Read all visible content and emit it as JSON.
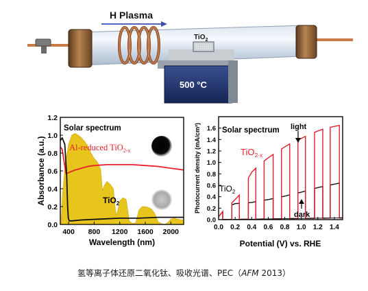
{
  "schematic": {
    "plasma_label": "H Plasma",
    "sample_label": "TiO",
    "sample_sub": "2",
    "furnace_label": "500 °C"
  },
  "chart_data": [
    {
      "type": "line",
      "ylabel": "Absorbance (a.u.)",
      "xlabel": "Wavelength (nm)",
      "xlim": [
        270,
        2200
      ],
      "ylim": [
        0,
        1.2
      ],
      "x_ticks": [
        "400",
        "800",
        "1200",
        "1600",
        "2000"
      ],
      "y_ticks": [
        "0.0",
        "0.2",
        "0.4",
        "0.6",
        "0.8",
        "1.0",
        "1.2"
      ],
      "annotations": [
        "Solar spectrum",
        "Al-reduced TiO",
        "2-x",
        "TiO",
        "2"
      ],
      "series": [
        {
          "name": "Al-reduced TiO2-x",
          "color": "#e8202a",
          "x": [
            270,
            300,
            330,
            360,
            400,
            500,
            600,
            700,
            800,
            1000,
            1200,
            1400,
            1600,
            1800,
            2000,
            2200
          ],
          "y": [
            0.87,
            0.84,
            0.7,
            0.57,
            0.58,
            0.61,
            0.63,
            0.65,
            0.66,
            0.67,
            0.67,
            0.67,
            0.66,
            0.65,
            0.63,
            0.61
          ]
        },
        {
          "name": "TiO2",
          "color": "#111111",
          "x": [
            270,
            300,
            340,
            370,
            385,
            395,
            410,
            450,
            600,
            900,
            1200,
            1500,
            1800,
            2000,
            2200
          ],
          "y": [
            0.94,
            0.97,
            0.9,
            0.55,
            0.2,
            0.07,
            0.04,
            0.04,
            0.05,
            0.06,
            0.07,
            0.07,
            0.08,
            0.08,
            0.08
          ]
        },
        {
          "name": "Solar spectrum",
          "color": "#e8c51c",
          "x": [
            280,
            300,
            350,
            400,
            450,
            500,
            550,
            600,
            650,
            700,
            750,
            800,
            850,
            900,
            930,
            960,
            1000,
            1050,
            1100,
            1130,
            1150,
            1200,
            1250,
            1300,
            1350,
            1400,
            1450,
            1500,
            1550,
            1600,
            1650,
            1700,
            1750,
            1800,
            1850,
            1900,
            1950,
            2000,
            2050,
            2100,
            2200
          ],
          "y": [
            0.0,
            0.3,
            0.7,
            0.9,
            1.0,
            1.02,
            1.0,
            0.97,
            0.93,
            0.88,
            0.8,
            0.74,
            0.7,
            0.62,
            0.38,
            0.44,
            0.48,
            0.45,
            0.4,
            0.18,
            0.1,
            0.26,
            0.3,
            0.28,
            0.04,
            0.01,
            0.02,
            0.16,
            0.2,
            0.2,
            0.19,
            0.17,
            0.12,
            0.03,
            0.01,
            0.0,
            0.02,
            0.06,
            0.07,
            0.06,
            0.05
          ]
        }
      ]
    },
    {
      "type": "line",
      "ylabel": "Photocurrent density (mA/cm²)",
      "xlabel": "Potential (V) vs. RHE",
      "xlim": [
        0,
        1.5
      ],
      "ylim": [
        0,
        1.8
      ],
      "x_ticks": [
        "0.0",
        "0.2",
        "0.4",
        "0.6",
        "0.8",
        "1.0",
        "1.2",
        "1.4"
      ],
      "y_ticks": [
        "0.0",
        "0.2",
        "0.4",
        "0.6",
        "0.8",
        "1.0",
        "1.2",
        "1.4",
        "1.6"
      ],
      "annotations": [
        "Solar spectrum",
        "light",
        "TiO",
        "2-x",
        "TiO",
        "2",
        "dark"
      ],
      "chop_period_V": 0.1,
      "series": [
        {
          "name": "TiO2-x (light envelope)",
          "color": "#e02030",
          "x": [
            0.0,
            0.05,
            0.1,
            0.15,
            0.2,
            0.25,
            0.3,
            0.35,
            0.4,
            0.5,
            0.6,
            0.7,
            0.8,
            0.9,
            1.0,
            1.1,
            1.2,
            1.3,
            1.4,
            1.5
          ],
          "y": [
            0.05,
            0.14,
            0.22,
            0.28,
            0.35,
            0.43,
            0.55,
            0.7,
            0.83,
            0.97,
            1.08,
            1.18,
            1.27,
            1.36,
            1.42,
            1.49,
            1.55,
            1.6,
            1.63,
            1.66
          ]
        },
        {
          "name": "TiO2 (light envelope)",
          "color": "#111111",
          "x": [
            0.0,
            0.05,
            0.1,
            0.15,
            0.2,
            0.3,
            0.4,
            0.5,
            0.6,
            0.7,
            0.8,
            0.9,
            1.0,
            1.1,
            1.2,
            1.3,
            1.4,
            1.5
          ],
          "y": [
            0.05,
            0.14,
            0.2,
            0.25,
            0.28,
            0.29,
            0.3,
            0.33,
            0.35,
            0.38,
            0.41,
            0.45,
            0.48,
            0.52,
            0.56,
            0.59,
            0.62,
            0.65
          ]
        },
        {
          "name": "dark current",
          "color": "#111111",
          "x": [
            0.0,
            0.5,
            1.0,
            1.5
          ],
          "y": [
            0.0,
            0.01,
            0.02,
            0.03
          ]
        }
      ]
    }
  ],
  "caption": {
    "text": "氢等离子体还原二氧化钛、吸收光谱、PEC（",
    "journal": "AFM",
    "year": " 2013）"
  }
}
